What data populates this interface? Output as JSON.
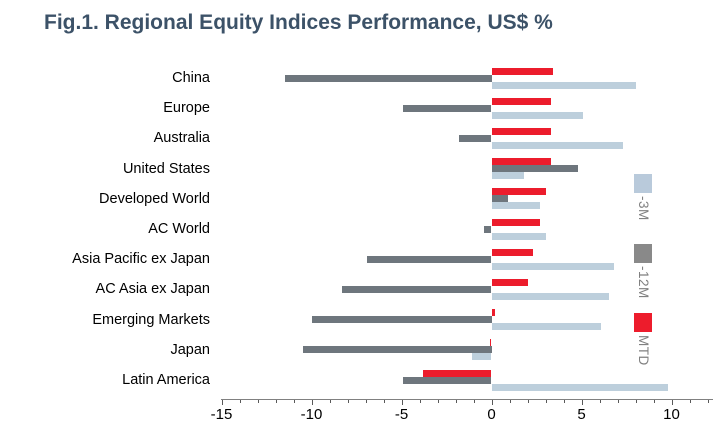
{
  "title": {
    "text": "Fig.1. Regional Equity Indices Performance, US$ %",
    "color": "#3c5268"
  },
  "chart_data": {
    "type": "bar",
    "orientation": "horizontal",
    "title": "Fig.1. Regional Equity Indices Performance, US$ %",
    "xlabel": "",
    "ylabel": "",
    "categories": [
      "China",
      "Europe",
      "Australia",
      "United States",
      "Developed World",
      "AC World",
      "Asia Pacific ex Japan",
      "AC Asia ex Japan",
      "Emerging Markets",
      "Japan",
      "Latin America"
    ],
    "series": [
      {
        "name": "-3M",
        "color": "#bdcfdc",
        "values": [
          8.0,
          5.1,
          7.3,
          1.8,
          2.7,
          3.0,
          6.8,
          6.5,
          6.1,
          -1.1,
          9.8
        ]
      },
      {
        "name": "-12M",
        "color": "#6e767d",
        "values": [
          -11.5,
          -4.9,
          -1.8,
          4.8,
          0.9,
          -0.4,
          -6.9,
          -8.3,
          -10.0,
          -10.5,
          -4.9
        ]
      },
      {
        "name": "MTD",
        "color": "#ec1c2c",
        "values": [
          3.4,
          3.3,
          3.3,
          3.3,
          3.0,
          2.7,
          2.3,
          2.0,
          0.2,
          -0.1,
          -3.8
        ]
      }
    ],
    "bar_display_order_top_to_bottom": [
      "MTD",
      "-12M",
      "-3M"
    ],
    "xlim": [
      -15,
      10
    ],
    "x_major_ticks": [
      -15,
      -10,
      -5,
      0,
      5,
      10
    ],
    "x_minor_tick_step": 1,
    "grid": false,
    "legend": {
      "position": "right",
      "label_color": "#808080",
      "items": [
        {
          "label": "-3M",
          "swatch": "#b9cadb"
        },
        {
          "label": "-12M",
          "swatch": "#898989"
        },
        {
          "label": "MTD",
          "swatch": "#ed1c2c"
        }
      ]
    }
  }
}
